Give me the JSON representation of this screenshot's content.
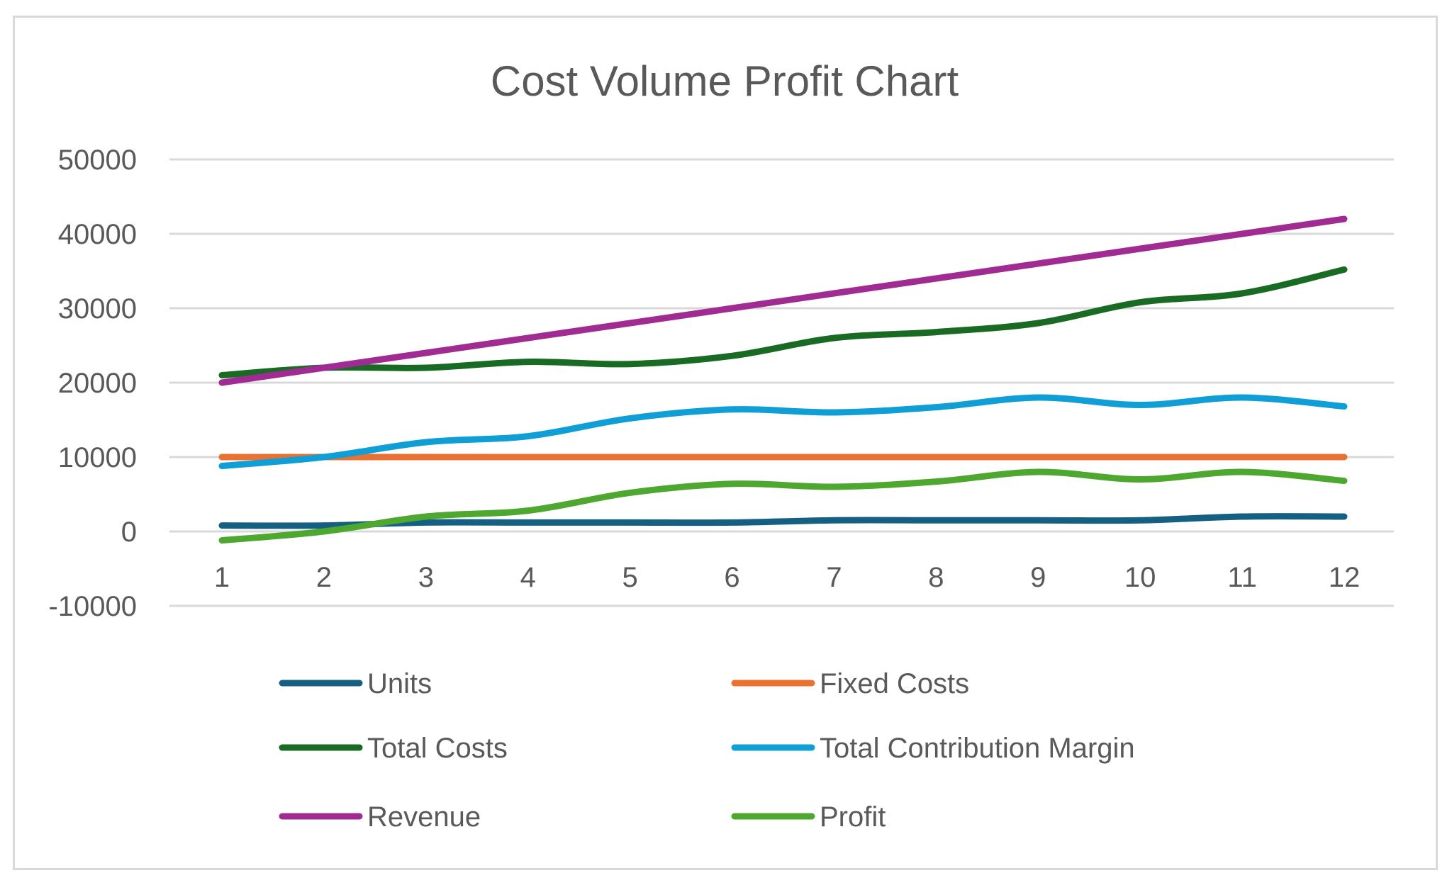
{
  "chart_data": {
    "type": "line",
    "title": "Cost Volume Profit Chart",
    "xlabel": "",
    "ylabel": "",
    "categories": [
      "1",
      "2",
      "3",
      "4",
      "5",
      "6",
      "7",
      "8",
      "9",
      "10",
      "11",
      "12"
    ],
    "ylim": [
      -10000,
      50000
    ],
    "yticks": [
      50000,
      40000,
      30000,
      20000,
      10000,
      0,
      -10000
    ],
    "grid": true,
    "smoothed": true,
    "legend_position": "bottom",
    "series": [
      {
        "name": "Units",
        "color": "#156082",
        "values": [
          800,
          800,
          1200,
          1200,
          1200,
          1200,
          1500,
          1500,
          1500,
          1500,
          2000,
          2000
        ]
      },
      {
        "name": "Fixed Costs",
        "color": "#E97132",
        "values": [
          10000,
          10000,
          10000,
          10000,
          10000,
          10000,
          10000,
          10000,
          10000,
          10000,
          10000,
          10000
        ]
      },
      {
        "name": "Total Costs",
        "color": "#196B24",
        "values": [
          21000,
          22000,
          22000,
          22800,
          22500,
          23600,
          26000,
          26800,
          28000,
          30800,
          32000,
          35200
        ]
      },
      {
        "name": "Total Contribution Margin",
        "color": "#0F9ED5",
        "values": [
          8800,
          10000,
          12000,
          12800,
          15200,
          16400,
          16000,
          16700,
          18000,
          17000,
          18000,
          16800
        ]
      },
      {
        "name": "Revenue",
        "color": "#A02B93",
        "values": [
          20000,
          22000,
          24000,
          26000,
          28000,
          30000,
          32000,
          34000,
          36000,
          38000,
          40000,
          42000
        ]
      },
      {
        "name": "Profit",
        "color": "#4EA72E",
        "values": [
          -1200,
          0,
          2000,
          2800,
          5200,
          6400,
          6000,
          6700,
          8000,
          7000,
          8000,
          6800
        ]
      }
    ]
  }
}
